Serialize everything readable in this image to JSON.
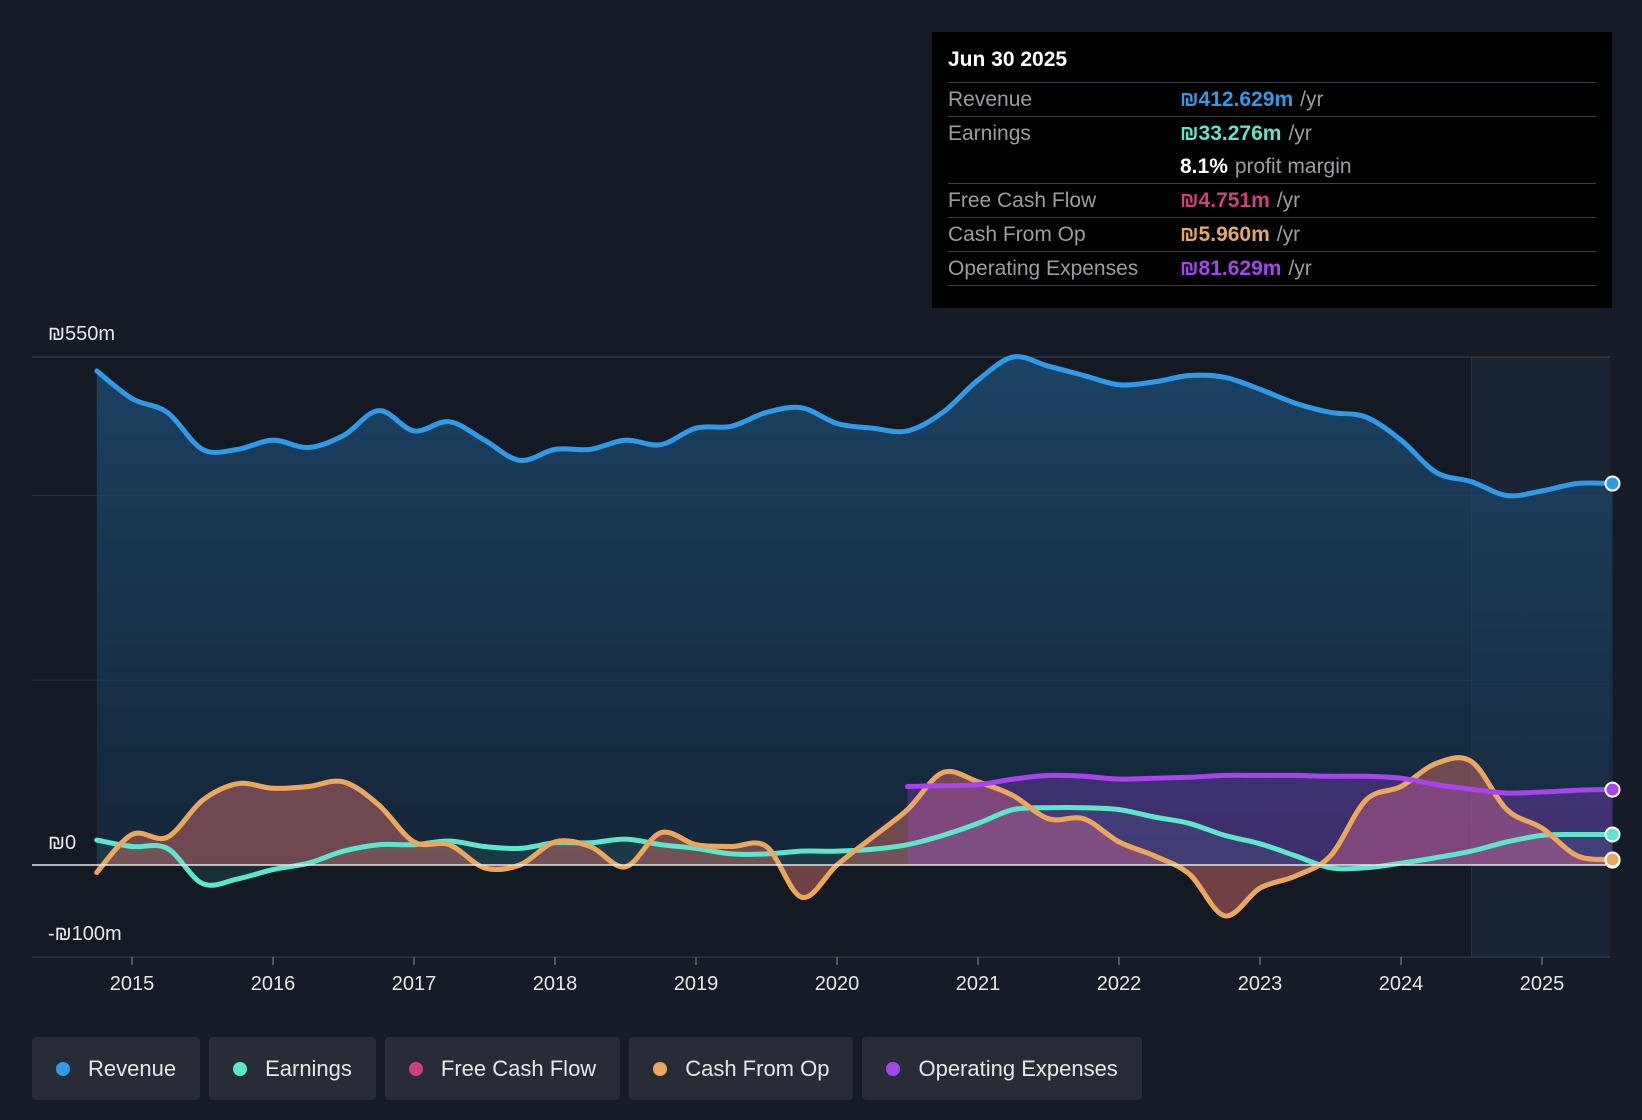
{
  "chart_data": {
    "type": "area",
    "y_top_label": "₪550m",
    "y_zero_label": "₪0",
    "y_bottom_label": "-₪100m",
    "ylim": [
      -100,
      550
    ],
    "x_range": [
      2014.75,
      2025.5
    ],
    "x_ticks": [
      "2015",
      "2016",
      "2017",
      "2018",
      "2019",
      "2020",
      "2021",
      "2022",
      "2023",
      "2024",
      "2025"
    ],
    "series": [
      {
        "name": "Revenue",
        "color": "#2f9be8",
        "x": [
          2014.75,
          2015.0,
          2015.25,
          2015.5,
          2015.75,
          2016.0,
          2016.25,
          2016.5,
          2016.75,
          2017.0,
          2017.25,
          2017.5,
          2017.75,
          2018.0,
          2018.25,
          2018.5,
          2018.75,
          2019.0,
          2019.25,
          2019.5,
          2019.75,
          2020.0,
          2020.25,
          2020.5,
          2020.75,
          2021.0,
          2021.25,
          2021.5,
          2021.75,
          2022.0,
          2022.25,
          2022.5,
          2022.75,
          2023.0,
          2023.25,
          2023.5,
          2023.75,
          2024.0,
          2024.25,
          2024.5,
          2024.75,
          2025.0,
          2025.25,
          2025.5
        ],
        "values": [
          535,
          505,
          490,
          450,
          450,
          460,
          452,
          465,
          492,
          470,
          480,
          460,
          438,
          450,
          450,
          460,
          455,
          473,
          475,
          490,
          495,
          478,
          473,
          470,
          490,
          525,
          550,
          540,
          530,
          520,
          523,
          530,
          528,
          515,
          500,
          490,
          485,
          460,
          425,
          415,
          400,
          405,
          413,
          413
        ]
      },
      {
        "name": "Earnings",
        "color": "#5de6cc",
        "x": [
          2014.75,
          2015.0,
          2015.25,
          2015.5,
          2015.75,
          2016.0,
          2016.25,
          2016.5,
          2016.75,
          2017.0,
          2017.25,
          2017.5,
          2017.75,
          2018.0,
          2018.25,
          2018.5,
          2018.75,
          2019.0,
          2019.25,
          2019.5,
          2019.75,
          2020.0,
          2020.25,
          2020.5,
          2020.75,
          2021.0,
          2021.25,
          2021.5,
          2021.75,
          2022.0,
          2022.25,
          2022.5,
          2022.75,
          2023.0,
          2023.25,
          2023.5,
          2023.75,
          2024.0,
          2024.25,
          2024.5,
          2024.75,
          2025.0,
          2025.25,
          2025.5
        ],
        "values": [
          27,
          20,
          18,
          -20,
          -15,
          -5,
          2,
          15,
          22,
          22,
          26,
          20,
          18,
          24,
          24,
          28,
          22,
          18,
          12,
          12,
          15,
          15,
          17,
          22,
          32,
          45,
          60,
          62,
          62,
          60,
          52,
          45,
          32,
          23,
          10,
          -3,
          -3,
          2,
          8,
          15,
          25,
          32,
          33,
          33
        ]
      },
      {
        "name": "Free Cash Flow",
        "color": "#d0407a",
        "x": [
          2014.75,
          2015.0,
          2015.25,
          2015.5,
          2015.75,
          2016.0,
          2016.25,
          2016.5,
          2016.75,
          2017.0,
          2017.25,
          2017.5,
          2017.75,
          2018.0,
          2018.25,
          2018.5,
          2018.75,
          2019.0,
          2019.25,
          2019.5,
          2019.75,
          2020.0,
          2020.25,
          2020.5,
          2020.75,
          2021.0,
          2021.25,
          2021.5,
          2021.75,
          2022.0,
          2022.25,
          2022.5,
          2022.75,
          2023.0,
          2023.25,
          2023.5,
          2023.75,
          2024.0,
          2024.25,
          2024.5,
          2024.75,
          2025.0,
          2025.25,
          2025.5
        ],
        "values": [
          -8,
          33,
          30,
          70,
          88,
          83,
          85,
          90,
          65,
          25,
          22,
          -3,
          0,
          25,
          20,
          -2,
          35,
          22,
          20,
          20,
          -35,
          0,
          30,
          60,
          100,
          90,
          75,
          50,
          50,
          25,
          10,
          -10,
          -55,
          -25,
          -12,
          10,
          70,
          85,
          110,
          112,
          60,
          40,
          10,
          4.751
        ]
      },
      {
        "name": "Cash From Op",
        "color": "#e9a85c",
        "x": [
          2014.75,
          2015.0,
          2015.25,
          2015.5,
          2015.75,
          2016.0,
          2016.25,
          2016.5,
          2016.75,
          2017.0,
          2017.25,
          2017.5,
          2017.75,
          2018.0,
          2018.25,
          2018.5,
          2018.75,
          2019.0,
          2019.25,
          2019.5,
          2019.75,
          2020.0,
          2020.25,
          2020.5,
          2020.75,
          2021.0,
          2021.25,
          2021.5,
          2021.75,
          2022.0,
          2022.25,
          2022.5,
          2022.75,
          2023.0,
          2023.25,
          2023.5,
          2023.75,
          2024.0,
          2024.25,
          2024.5,
          2024.75,
          2025.0,
          2025.25,
          2025.5
        ],
        "values": [
          -8,
          33,
          30,
          70,
          88,
          83,
          85,
          90,
          65,
          25,
          22,
          -3,
          0,
          25,
          20,
          -2,
          35,
          22,
          20,
          20,
          -35,
          0,
          30,
          60,
          100,
          90,
          75,
          50,
          50,
          25,
          10,
          -10,
          -55,
          -25,
          -12,
          10,
          70,
          85,
          110,
          112,
          60,
          40,
          10,
          5.96
        ]
      },
      {
        "name": "Operating Expenses",
        "color": "#a744ec",
        "x": [
          2020.5,
          2020.75,
          2021.0,
          2021.25,
          2021.5,
          2021.75,
          2022.0,
          2022.25,
          2022.5,
          2022.75,
          2023.0,
          2023.25,
          2023.5,
          2023.75,
          2024.0,
          2024.25,
          2024.5,
          2024.75,
          2025.0,
          2025.25,
          2025.5
        ],
        "values": [
          85,
          86,
          87,
          93,
          97,
          96,
          93,
          94,
          95,
          97,
          97,
          97,
          96,
          96,
          94,
          87,
          82,
          78,
          79,
          81,
          81.629
        ]
      }
    ]
  },
  "tooltip": {
    "date": "Jun 30 2025",
    "revenue_label": "Revenue",
    "revenue_value": "₪412.629m",
    "revenue_unit": "/yr",
    "earnings_label": "Earnings",
    "earnings_value": "₪33.276m",
    "earnings_unit": "/yr",
    "margin_pct": "8.1%",
    "margin_text": "profit margin",
    "fcf_label": "Free Cash Flow",
    "fcf_value": "₪4.751m",
    "fcf_unit": "/yr",
    "cfo_label": "Cash From Op",
    "cfo_value": "₪5.960m",
    "cfo_unit": "/yr",
    "opex_label": "Operating Expenses",
    "opex_value": "₪81.629m",
    "opex_unit": "/yr"
  },
  "legend": [
    {
      "label": "Revenue",
      "color": "#2f9be8"
    },
    {
      "label": "Earnings",
      "color": "#5de6cc"
    },
    {
      "label": "Free Cash Flow",
      "color": "#d0407a"
    },
    {
      "label": "Cash From Op",
      "color": "#e9a85c"
    },
    {
      "label": "Operating Expenses",
      "color": "#a744ec"
    }
  ]
}
